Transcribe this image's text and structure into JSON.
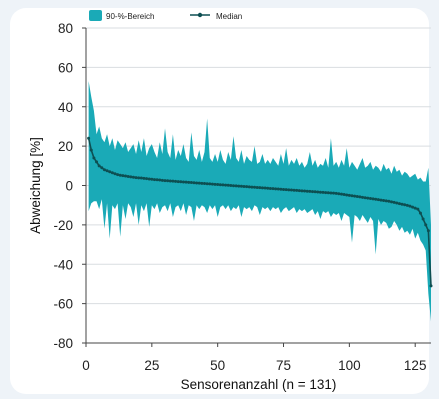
{
  "chart_data": {
    "type": "area",
    "xlabel": "Sensorenanzahl (n = 131)",
    "ylabel": "Abweichung [%]",
    "xlim": [
      0,
      131
    ],
    "ylim": [
      -80,
      80
    ],
    "xticks": [
      "0",
      "25",
      "50",
      "75",
      "100",
      "125"
    ],
    "yticks": [
      "80",
      "60",
      "40",
      "20",
      "0",
      "-20",
      "-40",
      "-60",
      "-80"
    ],
    "grid": "horizontal",
    "legend": {
      "position": "top",
      "entries": [
        {
          "label": "90-%-Bereich",
          "kind": "band",
          "color": "#1aaab7"
        },
        {
          "label": "Median",
          "kind": "line-marker",
          "color": "#0d4f52"
        }
      ]
    },
    "series": [
      {
        "name": "90-%-Bereich",
        "kind": "band",
        "x_start": 1,
        "upper": [
          53,
          45,
          38,
          26,
          30,
          24,
          22,
          26,
          20,
          24,
          18,
          23,
          21,
          19,
          22,
          17,
          19,
          21,
          16,
          23,
          17,
          24,
          15,
          19,
          21,
          17,
          14,
          22,
          16,
          29,
          17,
          14,
          26,
          13,
          18,
          15,
          21,
          14,
          12,
          27,
          15,
          13,
          18,
          12,
          17,
          34,
          14,
          12,
          16,
          12,
          18,
          13,
          11,
          17,
          13,
          25,
          14,
          12,
          18,
          11,
          15,
          13,
          12,
          20,
          11,
          12,
          16,
          11,
          13,
          11,
          14,
          12,
          10,
          16,
          11,
          19,
          10,
          13,
          11,
          14,
          10,
          12,
          9,
          11,
          17,
          10,
          13,
          9,
          11,
          10,
          14,
          9,
          24,
          10,
          12,
          9,
          13,
          10,
          19,
          9,
          12,
          10,
          8,
          11,
          14,
          9,
          10,
          12,
          8,
          10,
          9,
          7,
          11,
          8,
          9,
          6,
          10,
          7,
          8,
          5,
          7,
          6,
          4,
          5,
          6,
          3,
          4,
          2,
          2,
          9,
          -20
        ],
        "lower": [
          -13,
          -9,
          -8,
          -8,
          -12,
          -7,
          -22,
          -9,
          -27,
          -10,
          -12,
          -9,
          -26,
          -10,
          -17,
          -9,
          -11,
          -16,
          -9,
          -20,
          -10,
          -13,
          -9,
          -21,
          -10,
          -12,
          -9,
          -14,
          -11,
          -10,
          -13,
          -9,
          -16,
          -11,
          -10,
          -13,
          -9,
          -15,
          -10,
          -11,
          -18,
          -10,
          -12,
          -10,
          -11,
          -14,
          -10,
          -12,
          -10,
          -16,
          -11,
          -10,
          -12,
          -10,
          -13,
          -11,
          -12,
          -10,
          -16,
          -11,
          -12,
          -11,
          -13,
          -10,
          -11,
          -15,
          -11,
          -12,
          -11,
          -13,
          -11,
          -12,
          -11,
          -14,
          -12,
          -11,
          -13,
          -12,
          -11,
          -14,
          -12,
          -13,
          -12,
          -14,
          -13,
          -12,
          -15,
          -13,
          -17,
          -13,
          -14,
          -13,
          -16,
          -14,
          -15,
          -14,
          -18,
          -14,
          -15,
          -16,
          -29,
          -15,
          -16,
          -18,
          -15,
          -17,
          -19,
          -16,
          -18,
          -35,
          -17,
          -20,
          -18,
          -19,
          -22,
          -21,
          -18,
          -20,
          -23,
          -21,
          -24,
          -23,
          -25,
          -22,
          -27,
          -24,
          -28,
          -30,
          -33,
          -55,
          -69
        ]
      },
      {
        "name": "Median",
        "kind": "line-marker",
        "x_start": 1,
        "values": [
          24,
          18,
          14,
          12,
          10,
          9,
          8,
          7.5,
          7,
          6.5,
          6,
          5.5,
          5.2,
          5,
          4.8,
          4.6,
          4.4,
          4.2,
          4,
          3.9,
          3.8,
          3.6,
          3.5,
          3.3,
          3.2,
          3,
          2.9,
          2.8,
          2.6,
          2.5,
          2.4,
          2.3,
          2.2,
          2.1,
          2,
          1.9,
          1.8,
          1.7,
          1.6,
          1.5,
          1.4,
          1.3,
          1.2,
          1.1,
          1,
          0.9,
          0.8,
          0.7,
          0.6,
          0.5,
          0.4,
          0.3,
          0.2,
          0.1,
          0,
          -0.1,
          -0.2,
          -0.3,
          -0.4,
          -0.5,
          -0.6,
          -0.7,
          -0.8,
          -0.9,
          -1,
          -1.1,
          -1.2,
          -1.3,
          -1.4,
          -1.5,
          -1.6,
          -1.7,
          -1.8,
          -1.9,
          -2,
          -2.1,
          -2.2,
          -2.3,
          -2.4,
          -2.5,
          -2.6,
          -2.7,
          -2.8,
          -2.9,
          -3,
          -3.1,
          -3.2,
          -3.3,
          -3.4,
          -3.5,
          -3.6,
          -3.7,
          -3.8,
          -3.9,
          -4,
          -4.2,
          -4.4,
          -4.6,
          -4.8,
          -5,
          -5.2,
          -5.4,
          -5.6,
          -5.8,
          -6,
          -6.2,
          -6.4,
          -6.6,
          -6.8,
          -7,
          -7.2,
          -7.4,
          -7.6,
          -7.8,
          -8,
          -8.3,
          -8.6,
          -8.9,
          -9.2,
          -9.5,
          -9.8,
          -10.1,
          -10.5,
          -11,
          -11.5,
          -12,
          -14,
          -17,
          -20,
          -23,
          -51
        ]
      }
    ]
  }
}
